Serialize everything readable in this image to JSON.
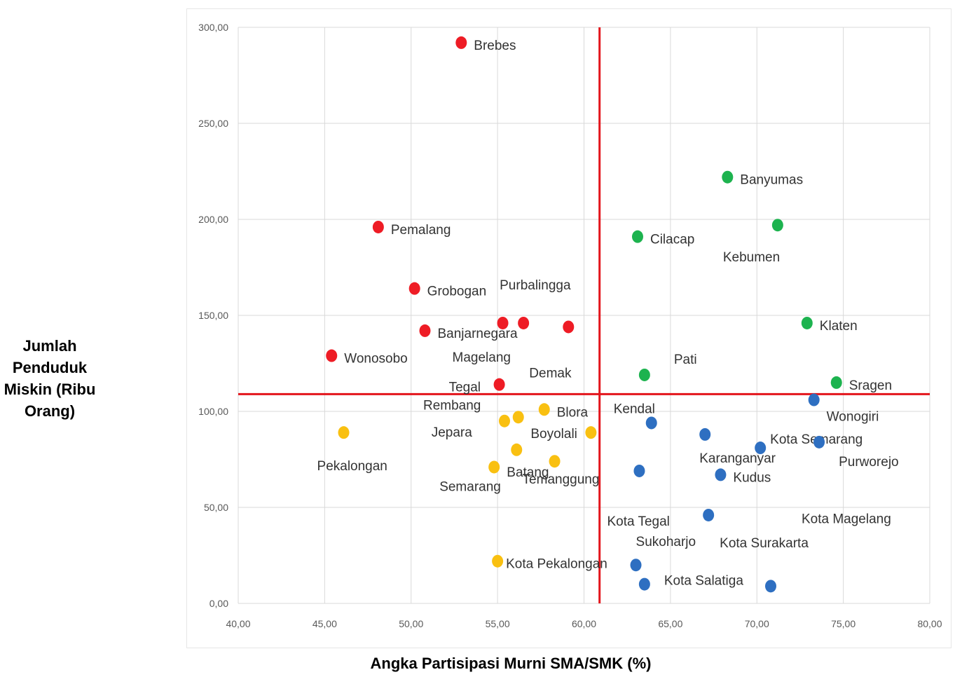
{
  "chart_data": {
    "type": "scatter",
    "xlabel": "Angka Partisipasi Murni SMA/SMK (%)",
    "ylabel": "Jumlah Penduduk Miskin (Ribu Orang)",
    "xlim": [
      40,
      80
    ],
    "ylim": [
      0,
      300
    ],
    "x_ticks": [
      "40,00",
      "45,00",
      "50,00",
      "55,00",
      "60,00",
      "65,00",
      "70,00",
      "75,00",
      "80,00"
    ],
    "y_ticks": [
      "0,00",
      "50,00",
      "100,00",
      "150,00",
      "200,00",
      "250,00",
      "300,00"
    ],
    "grid": true,
    "reference_lines": {
      "x": 60.9,
      "y": 109.0,
      "color": "#e3141b"
    },
    "colors": {
      "red": "#ee1c25",
      "green": "#1db34f",
      "yellow": "#f9c011",
      "blue": "#2e6fc1"
    },
    "points": [
      {
        "name": "Brebes",
        "x": 52.9,
        "y": 292,
        "group": "red"
      },
      {
        "name": "Pemalang",
        "x": 48.1,
        "y": 196,
        "group": "red"
      },
      {
        "name": "Grobogan",
        "x": 50.2,
        "y": 164,
        "group": "red"
      },
      {
        "name": "Purbalingga",
        "x": 56.5,
        "y": 146,
        "group": "red"
      },
      {
        "name": "Banjarnegara",
        "x": 50.8,
        "y": 142,
        "group": "red"
      },
      {
        "name": "Magelang",
        "x": 55.3,
        "y": 146,
        "group": "red"
      },
      {
        "name": "Demak",
        "x": 59.1,
        "y": 144,
        "group": "red"
      },
      {
        "name": "Wonosobo",
        "x": 45.4,
        "y": 129,
        "group": "red"
      },
      {
        "name": "Tegal",
        "x": 55.1,
        "y": 114,
        "group": "red"
      },
      {
        "name": "Banyumas",
        "x": 68.3,
        "y": 222,
        "group": "green"
      },
      {
        "name": "Kebumen",
        "x": 71.2,
        "y": 197,
        "group": "green"
      },
      {
        "name": "Cilacap",
        "x": 63.1,
        "y": 191,
        "group": "green"
      },
      {
        "name": "Klaten",
        "x": 72.9,
        "y": 146,
        "group": "green"
      },
      {
        "name": "Pati",
        "x": 63.5,
        "y": 119,
        "group": "green"
      },
      {
        "name": "Sragen",
        "x": 74.6,
        "y": 115,
        "group": "green"
      },
      {
        "name": "Rembang",
        "x": 55.4,
        "y": 95,
        "group": "yellow"
      },
      {
        "name": "Blora",
        "x": 57.7,
        "y": 101,
        "group": "yellow"
      },
      {
        "name": "Jepara",
        "x": 56.2,
        "y": 97,
        "group": "yellow"
      },
      {
        "name": "Boyolali",
        "x": 60.4,
        "y": 89,
        "group": "yellow"
      },
      {
        "name": "Pekalongan",
        "x": 46.1,
        "y": 89,
        "group": "yellow"
      },
      {
        "name": "Batang",
        "x": 56.1,
        "y": 80,
        "group": "yellow"
      },
      {
        "name": "Temanggung",
        "x": 58.3,
        "y": 74,
        "group": "yellow"
      },
      {
        "name": "Semarang",
        "x": 54.8,
        "y": 71,
        "group": "yellow"
      },
      {
        "name": "Kota Pekalongan",
        "x": 55.0,
        "y": 22,
        "group": "yellow"
      },
      {
        "name": "Wonogiri",
        "x": 73.3,
        "y": 106,
        "group": "blue"
      },
      {
        "name": "Kendal",
        "x": 63.9,
        "y": 94,
        "group": "blue"
      },
      {
        "name": "Karanganyar",
        "x": 67.0,
        "y": 88,
        "group": "blue"
      },
      {
        "name": "Kota Semarang",
        "x": 70.2,
        "y": 81,
        "group": "blue"
      },
      {
        "name": "Purworejo",
        "x": 73.6,
        "y": 84,
        "group": "blue"
      },
      {
        "name": "Kudus",
        "x": 67.9,
        "y": 67,
        "group": "blue"
      },
      {
        "name": "Kota Tegal",
        "x": 63.2,
        "y": 69,
        "group": "blue"
      },
      {
        "name": "Kota Surakarta",
        "x": 67.2,
        "y": 46,
        "group": "blue"
      },
      {
        "name": "Kota Magelang",
        "x": 70.8,
        "y": 9,
        "group": "blue"
      },
      {
        "name": "Sukoharjo",
        "x": 63.0,
        "y": 20,
        "group": "blue"
      },
      {
        "name": "Kota Salatiga",
        "x": 63.5,
        "y": 10,
        "group": "blue"
      }
    ]
  }
}
